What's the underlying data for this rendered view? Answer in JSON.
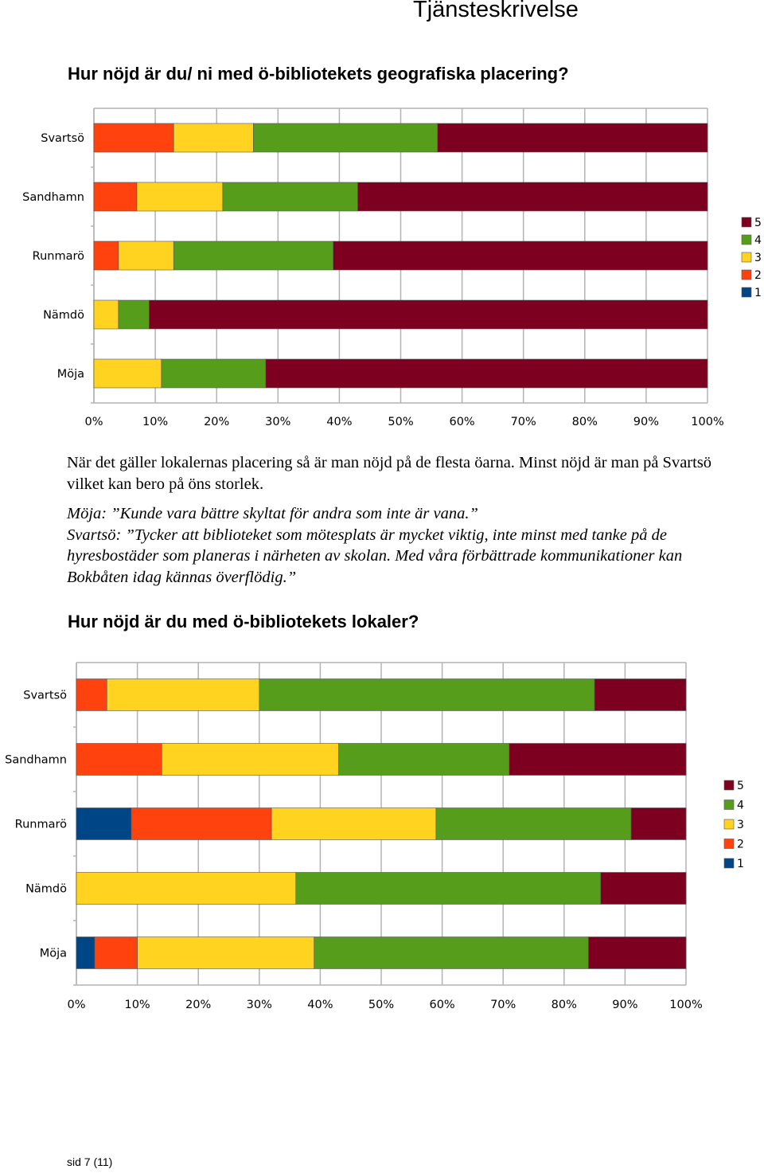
{
  "header": {
    "title": "Tjänsteskrivelse"
  },
  "section1": {
    "question": "Hur nöjd är du/ ni med ö-bibliotekets geografiska placering?"
  },
  "comments": {
    "paragraph1": "När det gäller lokalernas placering så är man nöjd på de flesta öarna. Minst nöjd är man på Svartsö vilket kan bero på öns storlek.",
    "quote1": "Möja: ”Kunde vara bättre skyltat för andra som inte är vana.”",
    "quote2": "Svartsö: ”Tycker att biblioteket som mötesplats är mycket viktig, inte minst med tanke på de hyresbostäder som planeras i närheten av skolan. Med våra förbättrade kommunikationer kan Bokbåten idag kännas överflödig.”"
  },
  "section2": {
    "question": "Hur nöjd är du med ö-bibliotekets lokaler?"
  },
  "footer": {
    "page": "sid  7 (11)"
  },
  "colors": {
    "1": "#004586",
    "2": "#ff420e",
    "3": "#ffd320",
    "4": "#579d1c",
    "5": "#7e0021"
  },
  "chart_data": [
    {
      "type": "bar",
      "orientation": "horizontal",
      "stacked": "percent",
      "title": "",
      "categories": [
        "Svartsö",
        "Sandhamn",
        "Runmarö",
        "Nämdö",
        "Möja"
      ],
      "series": [
        {
          "name": "1",
          "values": [
            0,
            0,
            0,
            0,
            0
          ]
        },
        {
          "name": "2",
          "values": [
            13,
            7,
            4,
            0,
            0
          ]
        },
        {
          "name": "3",
          "values": [
            13,
            14,
            9,
            4,
            11
          ]
        },
        {
          "name": "4",
          "values": [
            30,
            22,
            26,
            5,
            17
          ]
        },
        {
          "name": "5",
          "values": [
            44,
            57,
            61,
            91,
            72
          ]
        }
      ],
      "xlim": [
        0,
        100
      ],
      "x_ticks": [
        "0%",
        "10%",
        "20%",
        "30%",
        "40%",
        "50%",
        "60%",
        "70%",
        "80%",
        "90%",
        "100%"
      ],
      "grid": true,
      "legend": "right"
    },
    {
      "type": "bar",
      "orientation": "horizontal",
      "stacked": "percent",
      "title": "",
      "categories": [
        "Svartsö",
        "Sandhamn",
        "Runmarö",
        "Nämdö",
        "Möja"
      ],
      "series": [
        {
          "name": "1",
          "values": [
            0,
            0,
            9,
            0,
            3
          ]
        },
        {
          "name": "2",
          "values": [
            5,
            14,
            23,
            0,
            7
          ]
        },
        {
          "name": "3",
          "values": [
            25,
            29,
            27,
            36,
            29
          ]
        },
        {
          "name": "4",
          "values": [
            55,
            28,
            32,
            50,
            45
          ]
        },
        {
          "name": "5",
          "values": [
            15,
            29,
            9,
            14,
            16
          ]
        }
      ],
      "xlim": [
        0,
        100
      ],
      "x_ticks": [
        "0%",
        "10%",
        "20%",
        "30%",
        "40%",
        "50%",
        "60%",
        "70%",
        "80%",
        "90%",
        "100%"
      ],
      "grid": true,
      "legend": "right"
    }
  ]
}
